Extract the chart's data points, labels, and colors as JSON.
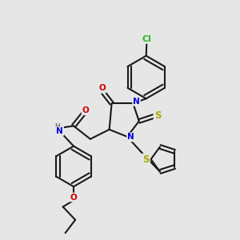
{
  "bg_color": "#e6e6e6",
  "bond_color": "#1a1a1a",
  "bond_width": 1.5,
  "atom_colors": {
    "C": "#1a1a1a",
    "N": "#0000dd",
    "O": "#cc0000",
    "S": "#aaaa00",
    "Cl": "#22bb22",
    "H": "#777777"
  },
  "font_size_atom": 7.5,
  "font_size_small": 6.0
}
